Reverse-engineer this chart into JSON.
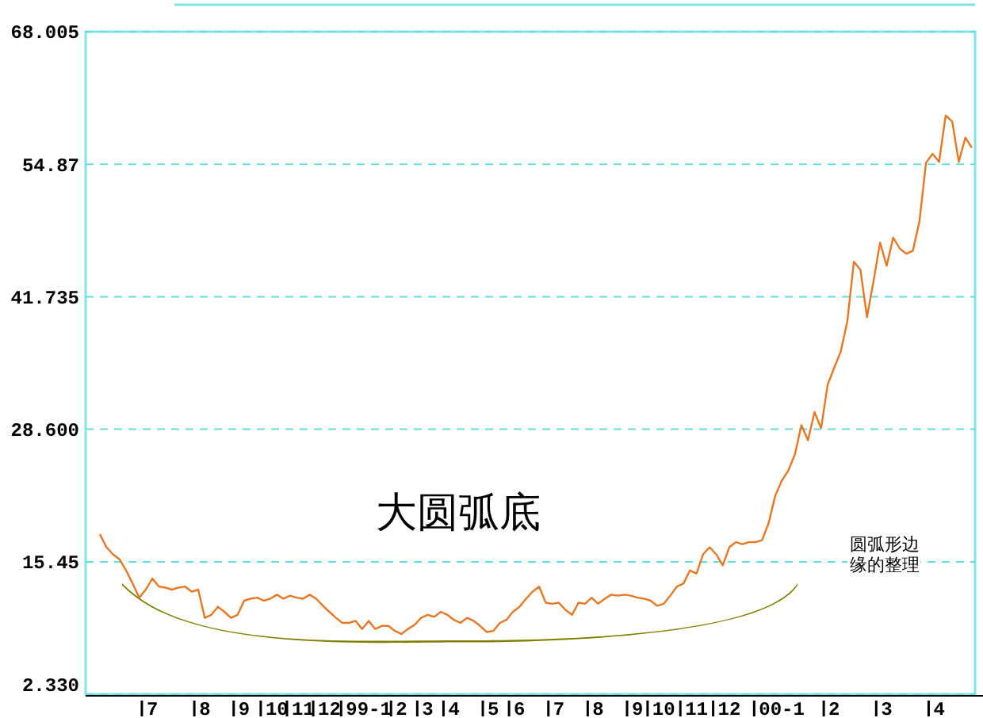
{
  "chart_data": {
    "type": "line",
    "categories": [
      null,
      null,
      null,
      null,
      null,
      null,
      null,
      null,
      "7",
      null,
      null,
      null,
      null,
      null,
      null,
      null,
      "8",
      null,
      null,
      null,
      null,
      null,
      "9",
      null,
      null,
      null,
      null,
      "10",
      null,
      null,
      null,
      "11",
      null,
      null,
      null,
      "12",
      null,
      null,
      null,
      null,
      null,
      "99-1",
      null,
      null,
      null,
      null,
      "2",
      null,
      null,
      null,
      "3",
      null,
      null,
      null,
      "4",
      null,
      null,
      null,
      null,
      null,
      "5",
      null,
      null,
      null,
      "6",
      null,
      null,
      null,
      null,
      null,
      "7",
      null,
      null,
      null,
      null,
      null,
      "8",
      null,
      null,
      null,
      null,
      null,
      "9",
      null,
      null,
      null,
      "10",
      null,
      null,
      null,
      null,
      "11",
      null,
      null,
      null,
      null,
      "12",
      null,
      null,
      null,
      null,
      null,
      null,
      null,
      "00-1",
      null,
      null,
      null,
      null,
      null,
      null,
      null,
      "2",
      null,
      null,
      null,
      null,
      null,
      null,
      null,
      "3",
      null,
      null,
      null,
      null,
      null,
      null,
      null,
      "4",
      null,
      null,
      null,
      null,
      null
    ],
    "series": [
      {
        "color": "#e87722",
        "values": [
          18.2,
          16.9,
          16.2,
          15.7,
          14.6,
          13.3,
          11.9,
          12.7,
          13.8,
          13.0,
          12.9,
          12.7,
          12.9,
          13.0,
          12.5,
          12.7,
          9.9,
          10.2,
          11.0,
          10.5,
          9.9,
          10.2,
          11.6,
          11.8,
          11.9,
          11.6,
          11.8,
          12.2,
          11.8,
          12.1,
          11.9,
          11.8,
          12.2,
          11.8,
          11.1,
          10.5,
          9.9,
          9.4,
          9.4,
          9.6,
          8.8,
          9.6,
          8.8,
          9.1,
          9.1,
          8.6,
          8.3,
          8.8,
          9.2,
          9.9,
          10.2,
          10.0,
          10.5,
          10.2,
          9.7,
          9.4,
          9.9,
          9.6,
          9.1,
          8.5,
          8.6,
          9.4,
          9.7,
          10.5,
          11.0,
          11.8,
          12.5,
          13.0,
          11.4,
          11.3,
          11.4,
          10.7,
          10.2,
          11.4,
          11.3,
          11.9,
          11.3,
          11.8,
          12.2,
          12.1,
          12.2,
          12.1,
          11.9,
          11.8,
          11.6,
          11.1,
          11.3,
          12.1,
          13.0,
          13.3,
          14.6,
          14.3,
          16.2,
          16.9,
          16.2,
          15.1,
          16.9,
          17.4,
          17.2,
          17.4,
          17.4,
          17.6,
          19.3,
          22.0,
          23.5,
          24.5,
          26.1,
          29.0,
          27.5,
          30.3,
          28.7,
          33.0,
          34.7,
          36.3,
          39.3,
          45.2,
          44.4,
          39.7,
          43.3,
          47.1,
          44.8,
          47.6,
          46.5,
          46.0,
          46.3,
          49.2,
          55.0,
          55.9,
          55.1,
          59.7,
          59.1,
          55.1,
          57.5,
          56.5
        ]
      }
    ],
    "ylim": [
      2.33,
      68.005
    ],
    "yticks": [
      {
        "value": 2.33,
        "label": "2.330"
      },
      15.45,
      {
        "value": 28.6,
        "label": "28.600"
      },
      41.735,
      54.87,
      68.005
    ],
    "grid": "y",
    "annotations": [
      "大圆弧底",
      "圆弧形边缘的整理"
    ]
  }
}
